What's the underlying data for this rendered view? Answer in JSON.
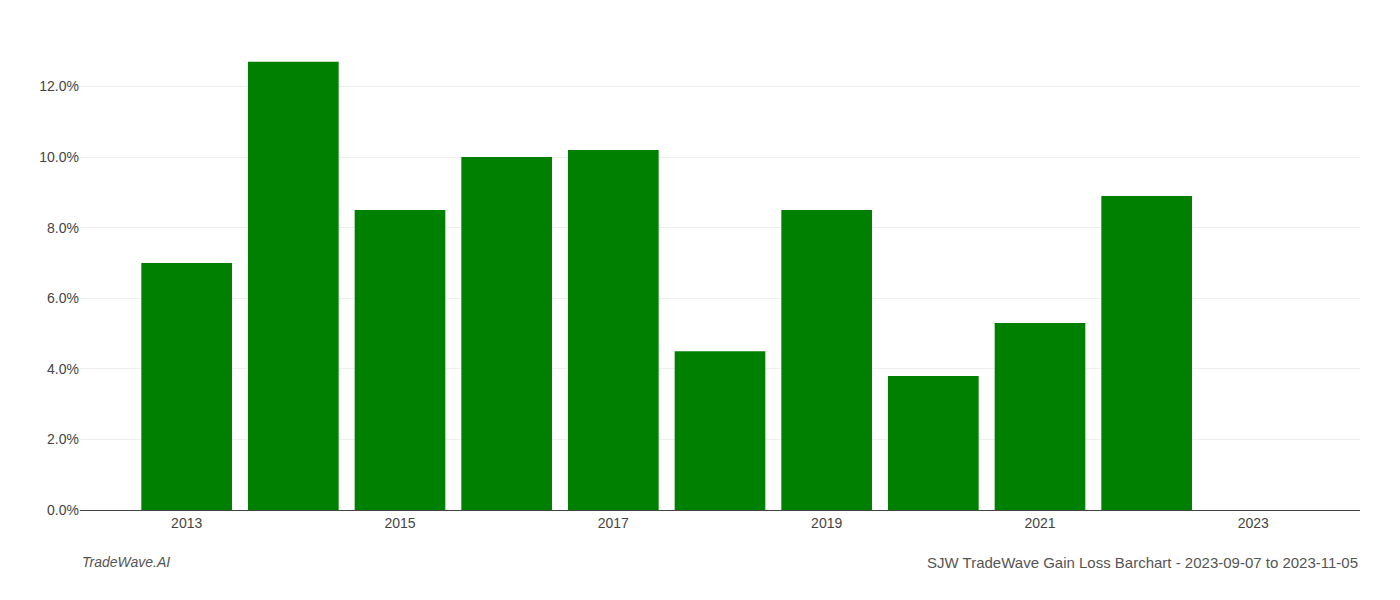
{
  "chart_data": {
    "type": "bar",
    "title": "SJW TradeWave Gain Loss Barchart - 2023-09-07 to 2023-11-05",
    "annotations": [
      {
        "text": "TradeWave.AI"
      }
    ],
    "x": [
      2013,
      2014,
      2015,
      2016,
      2017,
      2018,
      2019,
      2020,
      2021,
      2022
    ],
    "values": [
      0.07,
      0.127,
      0.085,
      0.1,
      0.102,
      0.045,
      0.085,
      0.038,
      0.053,
      0.089
    ],
    "color": "#008000",
    "xlim": [
      2012,
      2024
    ],
    "xticks": [
      2013,
      2015,
      2017,
      2019,
      2021,
      2023
    ],
    "ylim": [
      0,
      0.136
    ],
    "yticks": [
      {
        "value": 0.0,
        "label": "0.0%"
      },
      {
        "value": 0.02,
        "label": "2.0%"
      },
      {
        "value": 0.04,
        "label": "4.0%"
      },
      {
        "value": 0.06,
        "label": "6.0%"
      },
      {
        "value": 0.08,
        "label": "8.0%"
      },
      {
        "value": 0.1,
        "label": "10.0%"
      },
      {
        "value": 0.12,
        "label": "12.0%"
      }
    ],
    "grid": true
  }
}
